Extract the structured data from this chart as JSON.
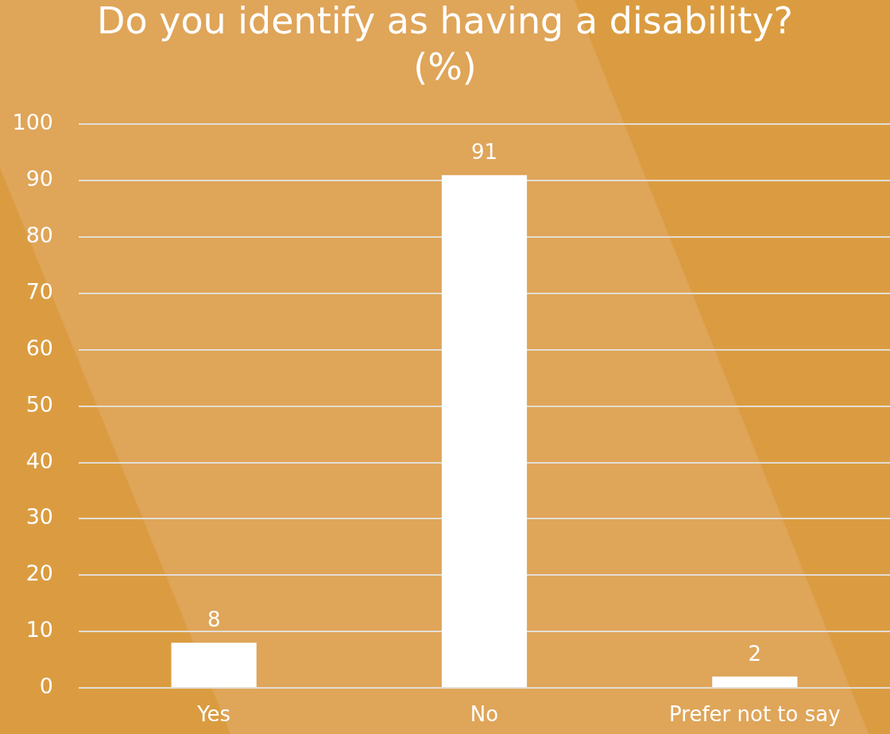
{
  "chart_data": {
    "type": "bar",
    "title": "Do you identify as having a disability?",
    "subtitle": "(%)",
    "categories": [
      "Yes",
      "No",
      "Prefer not to say"
    ],
    "values": [
      8,
      91,
      2
    ],
    "color": "#ffffff",
    "ylim": [
      0,
      100
    ],
    "yticks": [
      0,
      10,
      20,
      30,
      40,
      50,
      60,
      70,
      80,
      90,
      100
    ],
    "grid": "y",
    "data_labels": true
  }
}
